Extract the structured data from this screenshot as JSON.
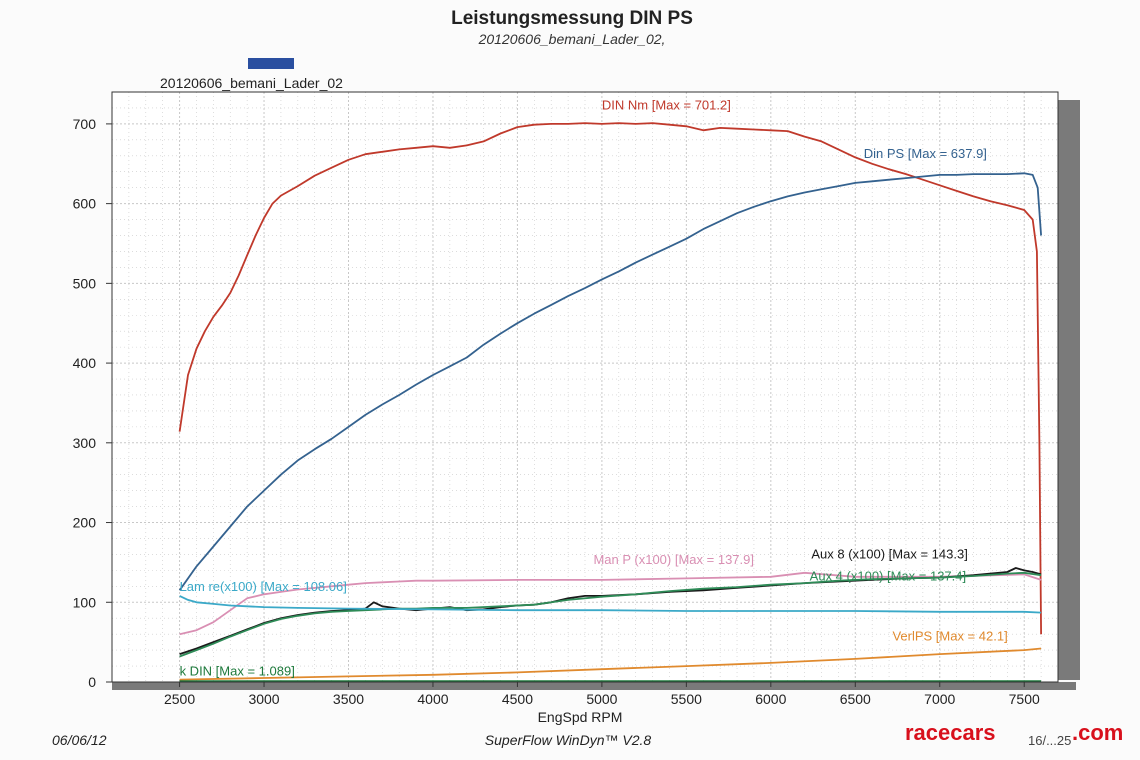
{
  "colors": {
    "background": "#fbfbfb",
    "plot_background": "#ffffff",
    "grid": "#c8c8c8",
    "shadow": "#7a7a7a",
    "legend_swatch": "#2a4fa0",
    "watermark": "#d8101c"
  },
  "legend": {
    "entry": "20120606_bemani_Lader_02"
  },
  "footer": {
    "date": "06/06/12",
    "software": "SuperFlow WinDyn™ V2.8",
    "page": "16/...25"
  },
  "watermark": {
    "part1": "racecars",
    "part2": ".com",
    "icon": "racecars-logo"
  },
  "chart_data": {
    "type": "line",
    "title": "Leistungsmessung DIN PS",
    "subtitle": "20120606_bemani_Lader_02,",
    "xlabel": "EngSpd  RPM",
    "ylabel": "",
    "xlim": [
      2100,
      7700
    ],
    "ylim": [
      0,
      740
    ],
    "x_ticks": [
      2500,
      3000,
      3500,
      4000,
      4500,
      5000,
      5500,
      6000,
      6500,
      7000,
      7500
    ],
    "y_ticks": [
      0,
      100,
      200,
      300,
      400,
      500,
      600,
      700
    ],
    "grid": true,
    "series": [
      {
        "name": "DIN Nm",
        "label": "DIN Nm [Max = 701.2]",
        "color": "#c0392b",
        "label_at": [
          5000,
          718
        ],
        "x": [
          2500,
          2550,
          2600,
          2650,
          2700,
          2750,
          2800,
          2850,
          2900,
          2950,
          3000,
          3050,
          3100,
          3200,
          3300,
          3400,
          3500,
          3600,
          3700,
          3800,
          3900,
          4000,
          4100,
          4200,
          4300,
          4400,
          4500,
          4600,
          4700,
          4800,
          4900,
          5000,
          5100,
          5200,
          5300,
          5400,
          5500,
          5600,
          5700,
          5800,
          5900,
          6000,
          6100,
          6200,
          6300,
          6400,
          6500,
          6600,
          6700,
          6800,
          6900,
          7000,
          7100,
          7200,
          7300,
          7400,
          7500,
          7550,
          7575,
          7590,
          7600
        ],
        "y": [
          314,
          385,
          418,
          440,
          458,
          472,
          488,
          510,
          535,
          560,
          582,
          600,
          610,
          622,
          635,
          645,
          655,
          662,
          665,
          668,
          670,
          672,
          670,
          673,
          678,
          688,
          696,
          699,
          700,
          700,
          701,
          700,
          701,
          700,
          701,
          699,
          697,
          692,
          695,
          694,
          693,
          692,
          691,
          684,
          678,
          668,
          658,
          650,
          643,
          637,
          630,
          623,
          616,
          609,
          603,
          598,
          592,
          580,
          540,
          300,
          60
        ]
      },
      {
        "name": "DIN PS",
        "label": "Din PS [Max = 637.9]",
        "color": "#34628f",
        "label_at": [
          6550,
          657
        ],
        "x": [
          2500,
          2600,
          2700,
          2800,
          2900,
          3000,
          3100,
          3200,
          3300,
          3400,
          3500,
          3600,
          3700,
          3800,
          3900,
          4000,
          4100,
          4200,
          4300,
          4400,
          4500,
          4600,
          4700,
          4800,
          4900,
          5000,
          5100,
          5200,
          5300,
          5400,
          5500,
          5600,
          5700,
          5800,
          5900,
          6000,
          6100,
          6200,
          6300,
          6400,
          6500,
          6600,
          6700,
          6800,
          6900,
          7000,
          7100,
          7200,
          7300,
          7400,
          7500,
          7550,
          7580,
          7600
        ],
        "y": [
          115,
          145,
          170,
          195,
          220,
          240,
          260,
          278,
          292,
          305,
          320,
          335,
          348,
          360,
          373,
          385,
          396,
          407,
          423,
          437,
          450,
          462,
          473,
          484,
          494,
          505,
          515,
          526,
          536,
          546,
          556,
          568,
          578,
          588,
          596,
          603,
          609,
          614,
          618,
          622,
          626,
          628,
          630,
          632,
          634,
          636,
          636,
          637,
          637,
          637,
          638,
          636,
          620,
          560
        ]
      },
      {
        "name": "Man P (x100)",
        "label": "Man P (x100) [Max = 137.9]",
        "color": "#d98fb3",
        "label_at": [
          4950,
          148
        ],
        "x": [
          2500,
          2600,
          2700,
          2800,
          2900,
          3000,
          3100,
          3200,
          3300,
          3400,
          3500,
          3600,
          3700,
          3800,
          3900,
          4000,
          4500,
          5000,
          5500,
          6000,
          6200,
          6500,
          7000,
          7500,
          7600
        ],
        "y": [
          60,
          65,
          75,
          90,
          105,
          110,
          113,
          116,
          118,
          120,
          122,
          124,
          125,
          126,
          127,
          127,
          128,
          128,
          130,
          132,
          137,
          132,
          132,
          135,
          128
        ]
      },
      {
        "name": "Aux 8 (x100)",
        "label": "Aux 8 (x100) [Max = 143.3]",
        "color": "#1a1a1a",
        "label_at": [
          6240,
          155
        ],
        "x": [
          2500,
          2600,
          2700,
          2800,
          2900,
          3000,
          3100,
          3200,
          3300,
          3400,
          3500,
          3600,
          3650,
          3700,
          3800,
          3900,
          4000,
          4100,
          4200,
          4300,
          4400,
          4500,
          4600,
          4700,
          4800,
          4900,
          5000,
          5200,
          5400,
          5600,
          5800,
          6000,
          6200,
          6400,
          6600,
          6800,
          7000,
          7200,
          7400,
          7450,
          7500,
          7550,
          7600
        ],
        "y": [
          35,
          42,
          50,
          58,
          66,
          74,
          80,
          84,
          87,
          89,
          90,
          92,
          100,
          95,
          92,
          90,
          92,
          94,
          90,
          91,
          94,
          96,
          97,
          100,
          105,
          108,
          108,
          110,
          113,
          115,
          118,
          121,
          124,
          126,
          128,
          130,
          131,
          134,
          138,
          143,
          140,
          138,
          135
        ]
      },
      {
        "name": "Aux 4 (x100)",
        "label": "Aux 4 (x100) [Max = 137.4]",
        "color": "#2e8b57",
        "label_at": [
          6230,
          127
        ],
        "x": [
          2500,
          2600,
          2700,
          2800,
          2900,
          3000,
          3100,
          3200,
          3300,
          3400,
          3500,
          3600,
          3700,
          3800,
          3900,
          4000,
          4200,
          4400,
          4600,
          4800,
          5000,
          5200,
          5400,
          5600,
          5800,
          6000,
          6200,
          6400,
          6600,
          6800,
          7000,
          7200,
          7400,
          7500,
          7600
        ],
        "y": [
          32,
          40,
          48,
          57,
          65,
          73,
          79,
          83,
          86,
          88,
          89,
          90,
          91,
          92,
          92,
          93,
          93,
          95,
          97,
          103,
          107,
          110,
          114,
          117,
          119,
          122,
          124,
          127,
          129,
          130,
          131,
          133,
          136,
          137,
          134
        ]
      },
      {
        "name": "Lam re(x100)",
        "label": "Lam re(x100) [Max = 108.06]",
        "color": "#3ba9c8",
        "label_at": [
          2500,
          114
        ],
        "x": [
          2500,
          2550,
          2600,
          2700,
          2800,
          2900,
          3000,
          3200,
          3500,
          4000,
          4500,
          5000,
          5500,
          6000,
          6500,
          7000,
          7500,
          7600
        ],
        "y": [
          108,
          103,
          100,
          98,
          96,
          95,
          94,
          93,
          92,
          91,
          90,
          90,
          89,
          89,
          89,
          88,
          88,
          87
        ]
      },
      {
        "name": "VerlPS",
        "label": "VerlPS [Max = 42.1]",
        "color": "#e08a2e",
        "label_at": [
          6720,
          52
        ],
        "x": [
          2500,
          3000,
          3500,
          4000,
          4500,
          5000,
          5500,
          6000,
          6500,
          7000,
          7500,
          7600
        ],
        "y": [
          3,
          5,
          7,
          9,
          12,
          16,
          20,
          24,
          29,
          35,
          40,
          42
        ]
      },
      {
        "name": "k DIN",
        "label": "k DIN  [Max = 1.089]",
        "color": "#1e7a3c",
        "label_at": [
          2500,
          8
        ],
        "x": [
          2500,
          7600
        ],
        "y": [
          1,
          1
        ]
      }
    ]
  }
}
